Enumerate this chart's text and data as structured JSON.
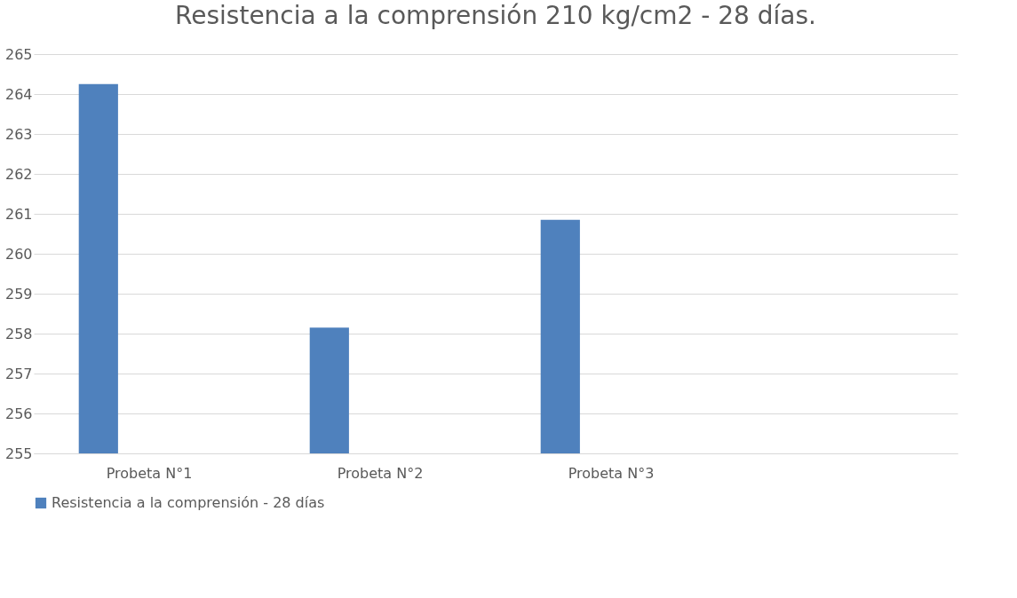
{
  "chart_data": {
    "type": "bar",
    "title": "Resistencia a la comprensión 210 kg/cm2 - 28 días.",
    "categories": [
      "Probeta N°1",
      "Probeta N°2",
      "Probeta N°3",
      null
    ],
    "series": [
      {
        "name": "Resistencia a la comprensión - 28 días",
        "color": "#4f81bd",
        "values": [
          264.25,
          258.15,
          260.85,
          null
        ]
      }
    ],
    "ylim": [
      255,
      265
    ],
    "yticks": [
      255,
      256,
      257,
      258,
      259,
      260,
      261,
      262,
      263,
      264,
      265
    ],
    "grid": "y",
    "legend": "bottom"
  }
}
